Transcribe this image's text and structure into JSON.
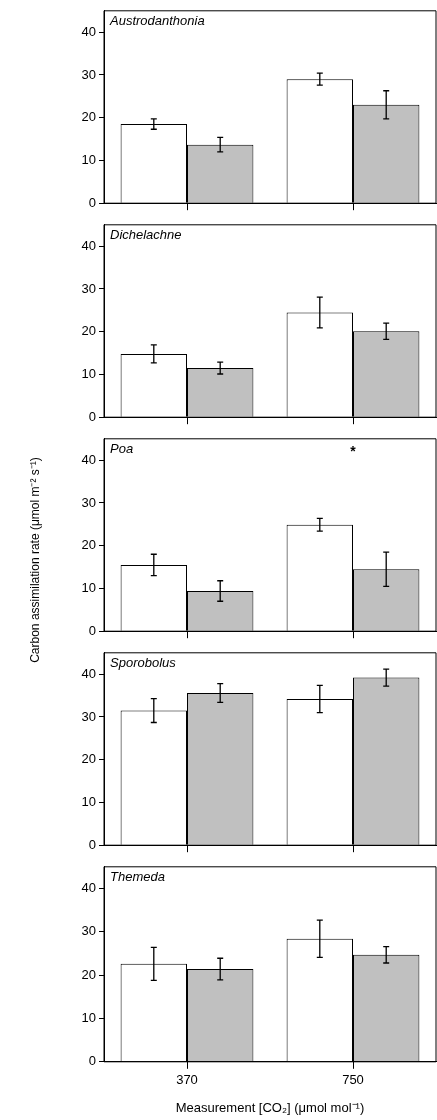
{
  "chart_data": [
    {
      "type": "bar",
      "title": "Austrodanthonia",
      "categories": [
        "370",
        "750"
      ],
      "series": [
        {
          "color": "#ffffff",
          "values": [
            18.5,
            29
          ],
          "errors": [
            1.2,
            1.4
          ]
        },
        {
          "color": "#c0c0c0",
          "values": [
            13.7,
            23
          ],
          "errors": [
            1.7,
            3.3
          ]
        }
      ],
      "ylim": [
        0,
        45
      ],
      "yticks": [
        0,
        10,
        20,
        30,
        40
      ],
      "tick_labels": "y"
    },
    {
      "type": "bar",
      "title": "Dichelachne",
      "categories": [
        "370",
        "750"
      ],
      "series": [
        {
          "color": "#ffffff",
          "values": [
            14.8,
            24.5
          ],
          "errors": [
            2.1,
            3.6
          ]
        },
        {
          "color": "#c0c0c0",
          "values": [
            11.5,
            20.1
          ],
          "errors": [
            1.4,
            1.9
          ]
        }
      ],
      "ylim": [
        0,
        45
      ],
      "yticks": [
        0,
        10,
        20,
        30,
        40
      ],
      "tick_labels": "y"
    },
    {
      "type": "bar",
      "title": "Poa",
      "ylabel": "Carbon assimilation rate (μmol m⁻² s⁻¹)",
      "categories": [
        "370",
        "750"
      ],
      "series": [
        {
          "color": "#ffffff",
          "values": [
            15.5,
            24.9
          ],
          "errors": [
            2.5,
            1.5
          ]
        },
        {
          "color": "#c0c0c0",
          "values": [
            9.4,
            14.5
          ],
          "errors": [
            2.4,
            4
          ]
        }
      ],
      "ylim": [
        0,
        45
      ],
      "yticks": [
        0,
        10,
        20,
        30,
        40
      ],
      "tick_labels": "y",
      "annotations": [
        "*"
      ]
    },
    {
      "type": "bar",
      "title": "Sporobolus",
      "categories": [
        "370",
        "750"
      ],
      "series": [
        {
          "color": "#ffffff",
          "values": [
            31.5,
            34.2
          ],
          "errors": [
            2.8,
            3.2
          ]
        },
        {
          "color": "#c0c0c0",
          "values": [
            35.6,
            39.2
          ],
          "errors": [
            2.2,
            2
          ]
        }
      ],
      "ylim": [
        0,
        45
      ],
      "yticks": [
        0,
        10,
        20,
        30,
        40
      ],
      "tick_labels": "y"
    },
    {
      "type": "bar",
      "title": "Themeda",
      "xlabel": "Measurement [CO₂] (μmol mol⁻¹)",
      "categories": [
        "370",
        "750"
      ],
      "series": [
        {
          "color": "#ffffff",
          "values": [
            22.6,
            28.4
          ],
          "errors": [
            3.8,
            4.3
          ]
        },
        {
          "color": "#c0c0c0",
          "values": [
            21.4,
            24.7
          ],
          "errors": [
            2.5,
            1.9
          ]
        }
      ],
      "ylim": [
        0,
        45
      ],
      "yticks": [
        0,
        10,
        20,
        30,
        40
      ]
    }
  ]
}
